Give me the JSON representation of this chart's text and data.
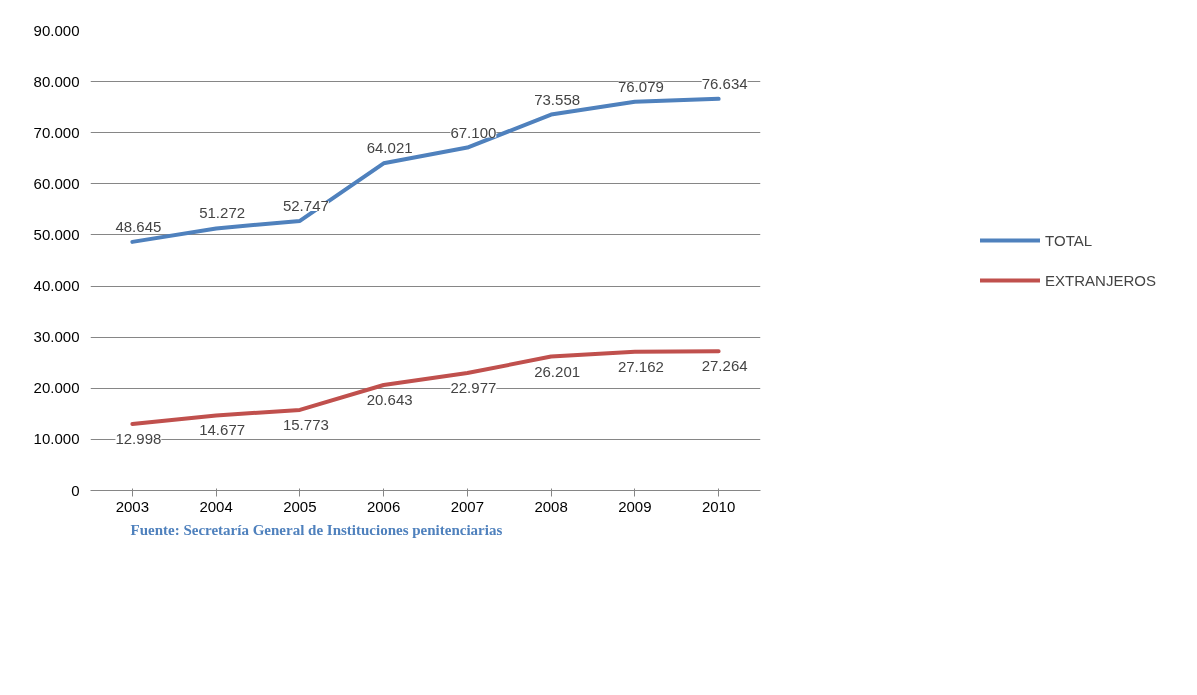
{
  "chart_data": {
    "type": "line",
    "categories": [
      "2003",
      "2004",
      "2005",
      "2006",
      "2007",
      "2008",
      "2009",
      "2010"
    ],
    "series": [
      {
        "name": "TOTAL",
        "color": "#4f81bd",
        "values": [
          48645,
          51272,
          52747,
          64021,
          67100,
          73558,
          76079,
          76634
        ],
        "value_labels": [
          "48.645",
          "51.272",
          "52.747",
          "64.021",
          "67.100",
          "73.558",
          "76.079",
          "76.634"
        ]
      },
      {
        "name": "EXTRANJEROS",
        "color": "#c0504d",
        "values": [
          12998,
          14677,
          15773,
          20643,
          22977,
          26201,
          27162,
          27264
        ],
        "value_labels": [
          "12.998",
          "14.677",
          "15.773",
          "20.643",
          "22.977",
          "26.201",
          "27.162",
          "27.264"
        ]
      }
    ],
    "ylim": [
      0,
      90000
    ],
    "yticks": [
      0,
      {
        "value": 10000,
        "label": "10.000"
      },
      {
        "value": 20000,
        "label": "20.000"
      },
      {
        "value": 30000,
        "label": "30.000"
      },
      {
        "value": 40000,
        "label": "40.000"
      },
      {
        "value": 50000,
        "label": "50.000"
      },
      {
        "value": 60000,
        "label": "60.000"
      },
      {
        "value": 70000,
        "label": "70.000"
      },
      {
        "value": 80000,
        "label": "80.000"
      },
      {
        "value": 90000,
        "label": "90.000"
      }
    ],
    "grid": "y",
    "legend": "right",
    "marker": "none",
    "line_style": "solid",
    "annotations": [
      "Fuente: Secretaría General de Instituciones penitenciarias"
    ]
  }
}
